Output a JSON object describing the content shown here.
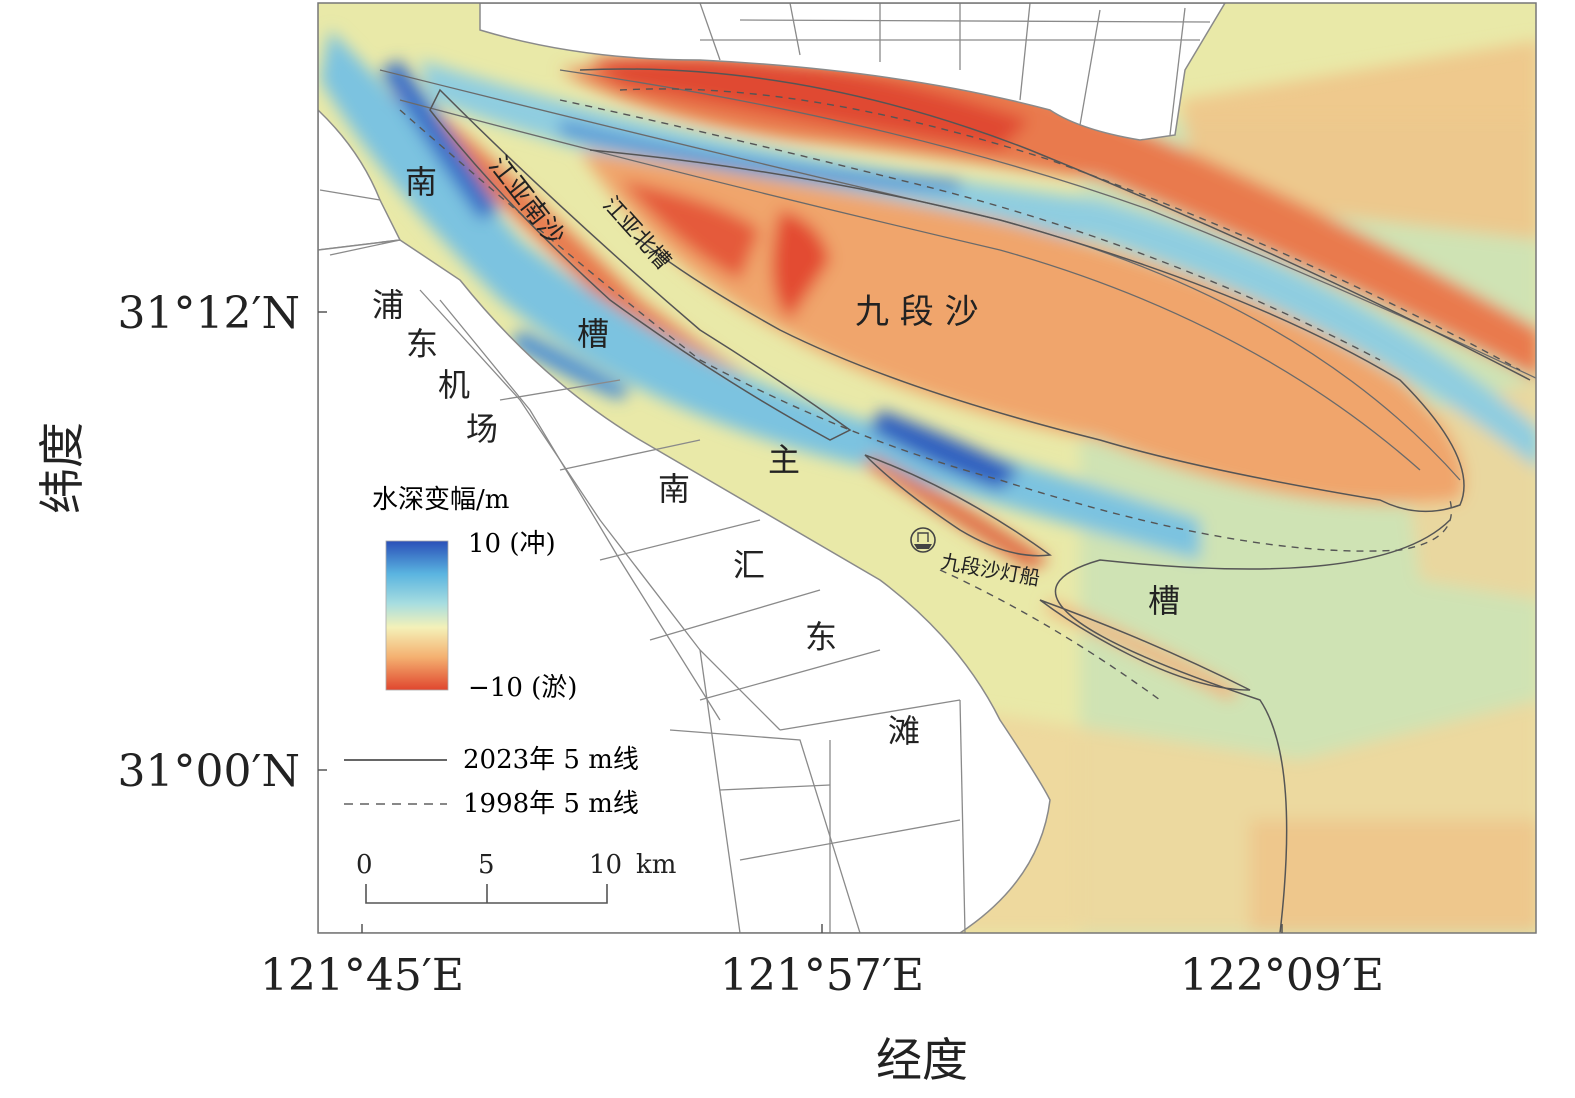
{
  "axes": {
    "y_title": "纬度",
    "x_title": "经度",
    "y_ticks": [
      "31°12′N",
      "31°00′N"
    ],
    "x_ticks": [
      "121°45′E",
      "121°57′E",
      "122°09′E"
    ]
  },
  "place_labels": {
    "nan_cao": [
      "南",
      "槽"
    ],
    "pudong_airport": [
      "浦",
      "东",
      "机",
      "场"
    ],
    "jiangya_nansha": "江亚南沙",
    "jiangya_beicao": "江亚北槽",
    "jiuduansha": "九 段 沙",
    "nancao_main": [
      "主",
      "槽"
    ],
    "nanhui_dongtan": [
      "南",
      "汇",
      "东",
      "滩"
    ],
    "lightship": "九段沙灯船"
  },
  "legend": {
    "title": "水深变幅/m",
    "max_label": "10 (冲)",
    "min_label": "−10 (淤)",
    "max_value": 10,
    "min_value": -10,
    "colors": [
      "#2a4fb8",
      "#5ab4e0",
      "#a7dde0",
      "#f4f1b8",
      "#f4b070",
      "#e0462e"
    ],
    "line_2023": "2023年 5 m线",
    "line_1998": "1998年 5 m线"
  },
  "scale_bar": {
    "ticks": [
      "0",
      "5",
      "10"
    ],
    "unit": "km"
  },
  "colors": {
    "land_fill": "#ffffff",
    "road_stroke": "#8a8a8a",
    "contour_stroke": "#555555"
  }
}
